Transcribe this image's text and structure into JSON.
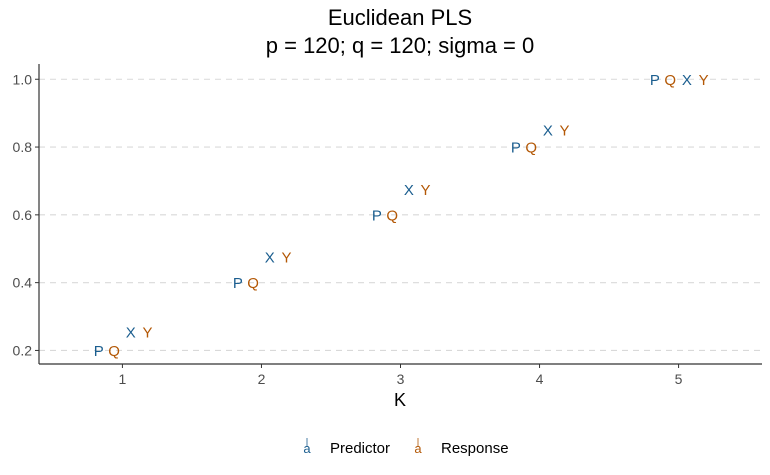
{
  "chart_data": {
    "type": "scatter",
    "title": [
      "Euclidean PLS",
      "p = 120; q = 120; sigma = 0"
    ],
    "xlabel": "K",
    "ylabel": "",
    "xlim": [
      0.4,
      5.6
    ],
    "ylim": [
      0.16,
      1.045
    ],
    "x_ticks": [
      1,
      2,
      3,
      4,
      5
    ],
    "y_ticks": [
      0.2,
      0.4,
      0.6,
      0.8,
      1.0
    ],
    "y_tick_labels": [
      "0.2",
      "0.4",
      "0.6",
      "0.8",
      "1.0"
    ],
    "grid": "horizontal-major-dashed",
    "legend_position": "bottom",
    "series": [
      {
        "name": "Predictor",
        "color": "#1b5e8f",
        "points": [
          {
            "label": "P",
            "x": 0.83,
            "y": 0.2
          },
          {
            "label": "X",
            "x": 1.06,
            "y": 0.255
          },
          {
            "label": "P",
            "x": 1.83,
            "y": 0.4
          },
          {
            "label": "X",
            "x": 2.06,
            "y": 0.475
          },
          {
            "label": "P",
            "x": 2.83,
            "y": 0.6
          },
          {
            "label": "X",
            "x": 3.06,
            "y": 0.675
          },
          {
            "label": "P",
            "x": 3.83,
            "y": 0.8
          },
          {
            "label": "X",
            "x": 4.06,
            "y": 0.85
          },
          {
            "label": "P",
            "x": 4.83,
            "y": 1.0
          },
          {
            "label": "X",
            "x": 5.06,
            "y": 1.0
          }
        ]
      },
      {
        "name": "Response",
        "color": "#b35806",
        "points": [
          {
            "label": "Q",
            "x": 0.94,
            "y": 0.2
          },
          {
            "label": "Y",
            "x": 1.18,
            "y": 0.255
          },
          {
            "label": "Q",
            "x": 1.94,
            "y": 0.4
          },
          {
            "label": "Y",
            "x": 2.18,
            "y": 0.475
          },
          {
            "label": "Q",
            "x": 2.94,
            "y": 0.6
          },
          {
            "label": "Y",
            "x": 3.18,
            "y": 0.675
          },
          {
            "label": "Q",
            "x": 3.94,
            "y": 0.8
          },
          {
            "label": "Y",
            "x": 4.18,
            "y": 0.85
          },
          {
            "label": "Q",
            "x": 4.94,
            "y": 1.0
          },
          {
            "label": "Y",
            "x": 5.18,
            "y": 1.0
          }
        ]
      }
    ],
    "legend_key_glyph": "a"
  }
}
